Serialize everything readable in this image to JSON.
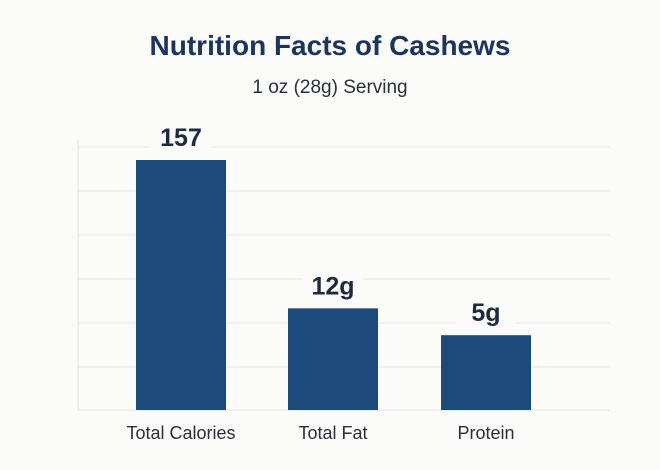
{
  "chart_data": {
    "type": "bar",
    "title": "Nutrition Facts of Cashews",
    "subtitle": "1 oz (28g) Serving",
    "categories": [
      "Total Calories",
      "Total Fat",
      "Protein"
    ],
    "values": [
      157,
      12,
      5
    ],
    "data_labels": [
      "157",
      "12g",
      "5g"
    ],
    "xlabel": "",
    "ylabel": "",
    "grid": true,
    "bar_color": "#1c4a7a",
    "label_color": "#1e2a40"
  }
}
